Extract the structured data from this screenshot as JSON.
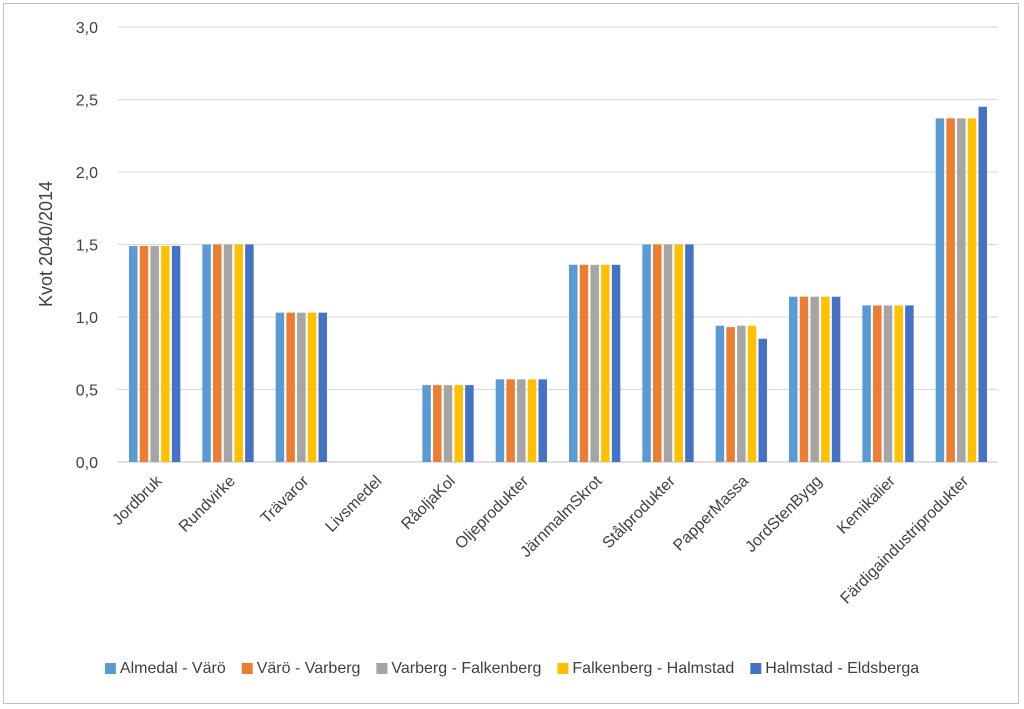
{
  "chart_data": {
    "type": "bar",
    "title": "",
    "xlabel": "",
    "ylabel": "Kvot 2040/2014",
    "ylim": [
      0,
      3.0
    ],
    "ytick_labels": [
      "0,0",
      "0,5",
      "1,0",
      "1,5",
      "2,0",
      "2,5",
      "3,0"
    ],
    "ytick_values": [
      0,
      0.5,
      1.0,
      1.5,
      2.0,
      2.5,
      3.0
    ],
    "grid": "horizontal",
    "legend_position": "bottom",
    "categories": [
      "Jordbruk",
      "Rundvirke",
      "Trävaror",
      "Livsmedel",
      "RåoljaKol",
      "Oljeprodukter",
      "JärnmalmSkrot",
      "Stålprodukter",
      "PapperMassa",
      "JordStenBygg",
      "Kemikalier",
      "Färdigaindustriprodukter"
    ],
    "series": [
      {
        "name": "Almedal - Värö",
        "color": "#5B9BD5",
        "values": [
          1.49,
          1.5,
          1.03,
          0,
          0.53,
          0.57,
          1.36,
          1.5,
          0.94,
          1.14,
          1.08,
          2.37
        ]
      },
      {
        "name": "Värö - Varberg",
        "color": "#ED7D31",
        "values": [
          1.49,
          1.5,
          1.03,
          0,
          0.53,
          0.57,
          1.36,
          1.5,
          0.93,
          1.14,
          1.08,
          2.37
        ]
      },
      {
        "name": "Varberg - Falkenberg",
        "color": "#A5A5A5",
        "values": [
          1.49,
          1.5,
          1.03,
          0,
          0.53,
          0.57,
          1.36,
          1.5,
          0.94,
          1.14,
          1.08,
          2.37
        ]
      },
      {
        "name": "Falkenberg - Halmstad",
        "color": "#FFC000",
        "values": [
          1.49,
          1.5,
          1.03,
          0,
          0.53,
          0.57,
          1.36,
          1.5,
          0.94,
          1.14,
          1.08,
          2.37
        ]
      },
      {
        "name": "Halmstad - Eldsberga",
        "color": "#4472C4",
        "values": [
          1.49,
          1.5,
          1.03,
          0,
          0.53,
          0.57,
          1.36,
          1.5,
          0.85,
          1.14,
          1.08,
          2.45
        ]
      }
    ]
  }
}
